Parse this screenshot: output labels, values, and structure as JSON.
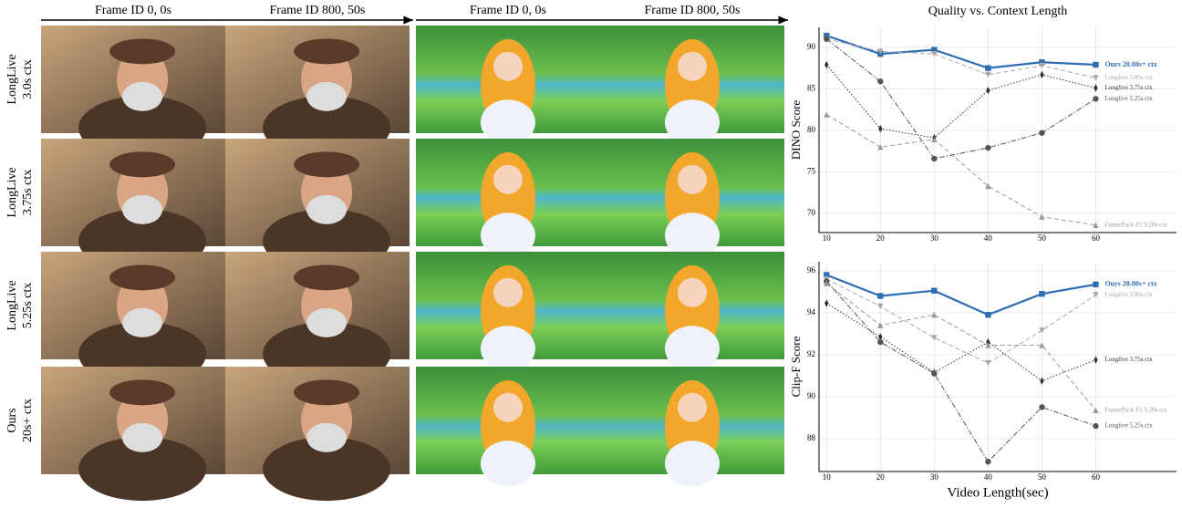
{
  "figure": {
    "groups": [
      {
        "frames": [
          "Frame ID 0, 0s",
          "Frame ID 800, 50s"
        ]
      },
      {
        "frames": [
          "Frame ID 0, 0s",
          "Frame ID 800, 50s"
        ]
      }
    ],
    "row_labels": [
      [
        "LongLive",
        "3.0s ctx"
      ],
      [
        "LongLive",
        "3.75s ctx"
      ],
      [
        "LongLive",
        "5.25s ctx"
      ],
      [
        "Ours",
        "20s+ ctx"
      ]
    ]
  },
  "chart_data": [
    {
      "type": "line",
      "title": "Quality vs. Context Length",
      "ylabel": "DINO Score",
      "x": [
        10,
        20,
        30,
        40,
        50,
        60
      ],
      "xlim": [
        8.6,
        75
      ],
      "xticks": [
        10,
        20,
        30,
        40,
        50,
        60
      ],
      "ylim": [
        67.7,
        92.4
      ],
      "yticks": [
        70,
        75,
        80,
        85,
        90
      ],
      "grid": true,
      "series": [
        {
          "name": "Ours 20.00s+ ctx",
          "color": "#2f6db3",
          "marker": "square",
          "linestyle": "solid",
          "values": [
            91.4,
            89.2,
            89.7,
            87.5,
            88.2,
            87.9
          ]
        },
        {
          "name": "Longlive 3.00s ctx",
          "color": "#a8a8a8",
          "marker": "triangle-down",
          "linestyle": "dashed",
          "values": [
            91.0,
            89.5,
            89.2,
            86.7,
            87.8,
            86.3
          ]
        },
        {
          "name": "Longlive 3.75s ctx",
          "color": "#333333",
          "marker": "diamond",
          "linestyle": "dotted",
          "values": [
            87.9,
            80.2,
            79.1,
            84.8,
            86.7,
            85.1
          ]
        },
        {
          "name": "Longlive 5.25s ctx",
          "color": "#555555",
          "marker": "circle",
          "linestyle": "dashdot",
          "values": [
            91.0,
            85.9,
            76.6,
            77.9,
            79.7,
            83.8
          ]
        },
        {
          "name": "FramePack-F1 9.20s ctx",
          "color": "#999999",
          "marker": "triangle-up",
          "linestyle": "dashed",
          "values": [
            81.9,
            78.0,
            78.9,
            73.3,
            69.6,
            68.6
          ]
        }
      ]
    },
    {
      "type": "line",
      "xlabel": "Video Length(sec)",
      "ylabel": "Clip-F Score",
      "x": [
        10,
        20,
        30,
        40,
        50,
        60
      ],
      "xlim": [
        8.6,
        75
      ],
      "xticks": [
        10,
        20,
        30,
        40,
        50,
        60
      ],
      "ylim": [
        86.43,
        96.43
      ],
      "yticks": [
        88,
        90,
        92,
        94,
        96
      ],
      "grid": true,
      "series": [
        {
          "name": "Ours 20.00s+ ctx",
          "color": "#2f6db3",
          "marker": "square",
          "linestyle": "solid",
          "values": [
            95.8,
            94.8,
            95.05,
            93.9,
            94.9,
            95.35
          ]
        },
        {
          "name": "Longlive 3.00s ctx",
          "color": "#a8a8a8",
          "marker": "triangle-down",
          "linestyle": "dashed",
          "values": [
            95.6,
            94.3,
            92.8,
            91.6,
            93.15,
            94.85
          ]
        },
        {
          "name": "Longlive 3.75s ctx",
          "color": "#333333",
          "marker": "diamond",
          "linestyle": "dotted",
          "values": [
            94.45,
            92.85,
            91.15,
            92.6,
            90.75,
            91.75
          ]
        },
        {
          "name": "Longlive 5.25s ctx",
          "color": "#555555",
          "marker": "circle",
          "linestyle": "dashdot",
          "values": [
            95.5,
            92.6,
            91.1,
            86.9,
            89.5,
            88.6
          ]
        },
        {
          "name": "FramePack-F1 9.20s ctx",
          "color": "#999999",
          "marker": "triangle-up",
          "linestyle": "dashed",
          "values": [
            95.4,
            93.4,
            93.9,
            92.45,
            92.45,
            89.35
          ]
        }
      ]
    }
  ]
}
